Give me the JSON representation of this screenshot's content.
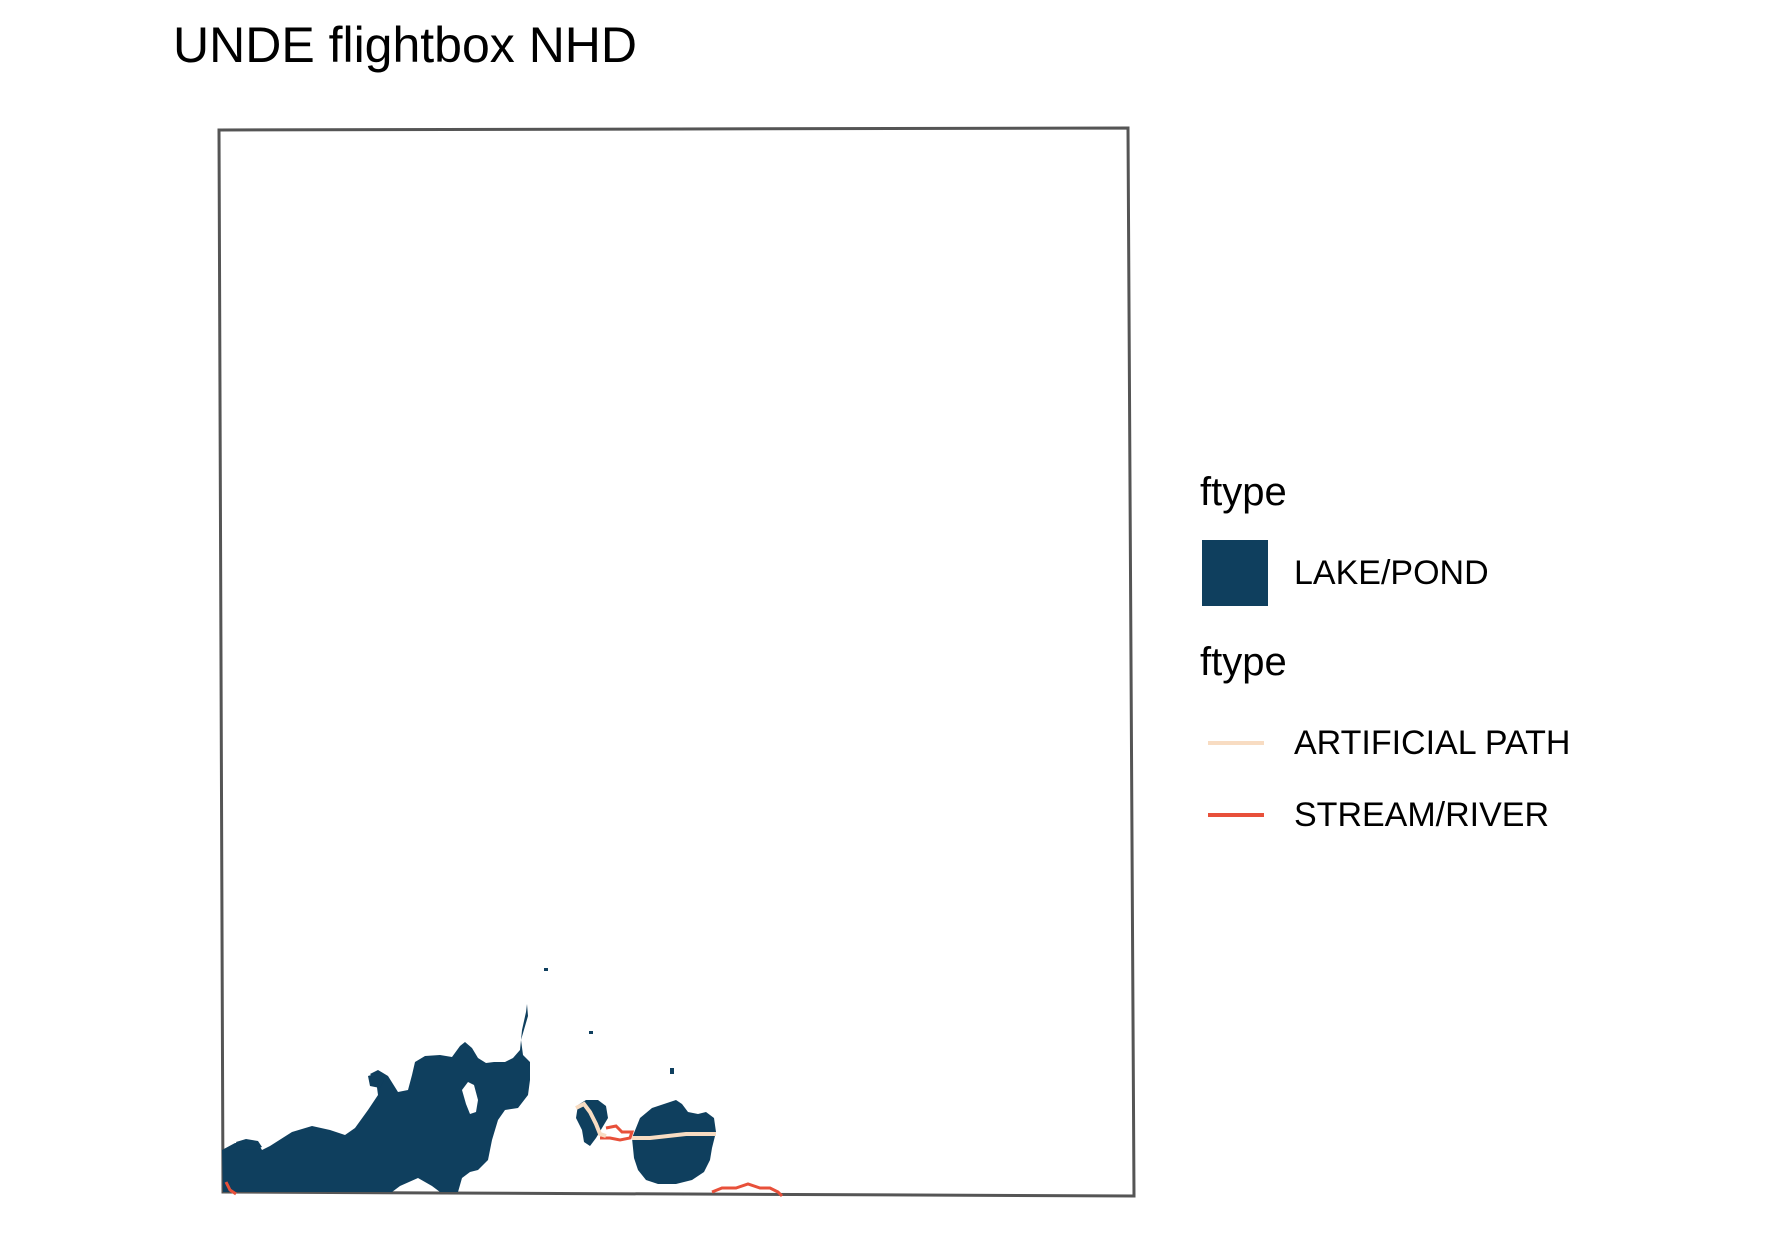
{
  "title": "UNDE flightbox NHD",
  "colors": {
    "lake_pond": "#0f3f5e",
    "artificial_path": "#f8dcc2",
    "stream_river": "#e8503a",
    "frame": "#555555"
  },
  "legend": {
    "fill_heading": "ftype",
    "fill_items": [
      {
        "label": "LAKE/POND",
        "color": "#0f3f5e"
      }
    ],
    "line_heading": "ftype",
    "line_items": [
      {
        "label": "ARTIFICIAL PATH",
        "color": "#f8dcc2"
      },
      {
        "label": "STREAM/RIVER",
        "color": "#e8503a"
      }
    ]
  }
}
